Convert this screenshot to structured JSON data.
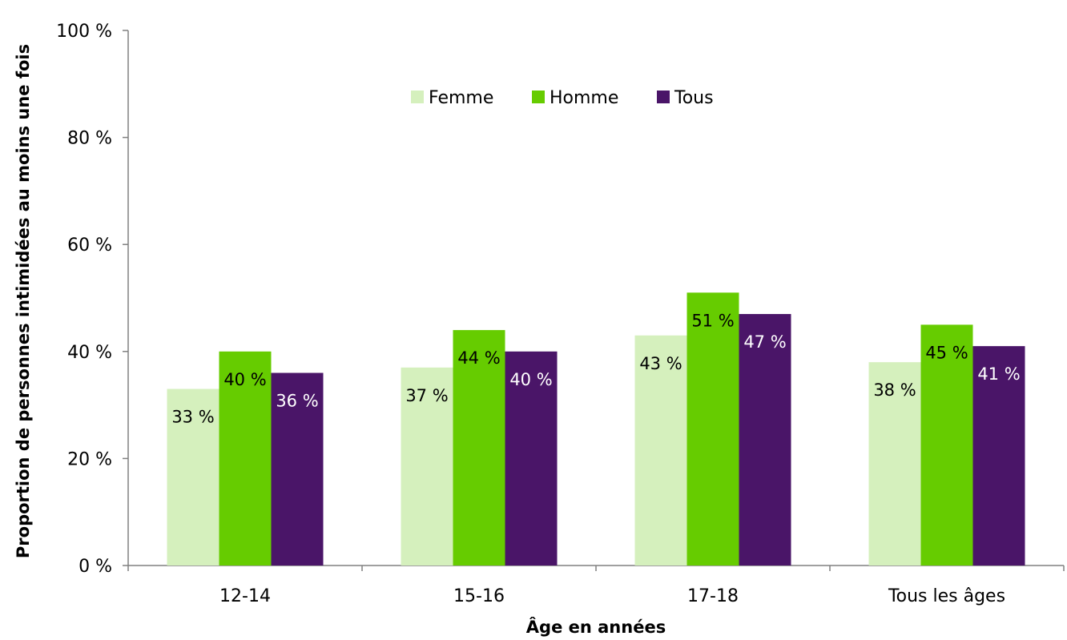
{
  "chart_data": {
    "type": "bar",
    "categories": [
      "12-14",
      "15-16",
      "17-18",
      "Tous les âges"
    ],
    "series": [
      {
        "name": "Femme",
        "values": [
          33,
          37,
          43,
          38
        ],
        "labels": [
          "33 %",
          "37 %",
          "43 %",
          "38 %"
        ],
        "color": "#d5f0bd",
        "label_color": "#000000"
      },
      {
        "name": "Homme",
        "values": [
          40,
          44,
          51,
          45
        ],
        "labels": [
          "40 %",
          "44 %",
          "51 %",
          "45 %"
        ],
        "color": "#66cc00",
        "label_color": "#000000"
      },
      {
        "name": "Tous",
        "values": [
          36,
          40,
          47,
          41
        ],
        "labels": [
          "36 %",
          "40 %",
          "47 %",
          "41 %"
        ],
        "color": "#4a1568",
        "label_color": "#ffffff"
      }
    ],
    "yticks": [
      0,
      20,
      40,
      60,
      80,
      100
    ],
    "ytick_labels": [
      "0 %",
      "20 %",
      "40 %",
      "60 %",
      "80 %",
      "100 %"
    ],
    "ylim": [
      0,
      100
    ],
    "xlabel": "Âge en années",
    "ylabel": "Proportion de personnes intimidées au moins une fois",
    "legend_position": "top-center",
    "grid": false
  }
}
